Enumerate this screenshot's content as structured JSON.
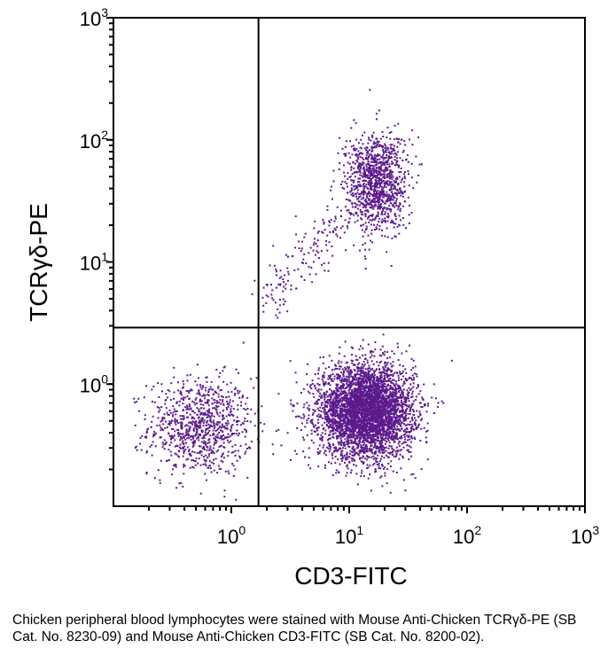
{
  "chart_data": {
    "type": "scatter",
    "title": "",
    "xlabel": "CD3-FITC",
    "ylabel": "TCRγδ-PE",
    "xscale": "log",
    "yscale": "log",
    "xlim": [
      0.1,
      1000
    ],
    "ylim": [
      0.1,
      1000
    ],
    "x_ticks": [
      {
        "value": 1,
        "base": "10",
        "exp": "0"
      },
      {
        "value": 10,
        "base": "10",
        "exp": "1"
      },
      {
        "value": 100,
        "base": "10",
        "exp": "2"
      },
      {
        "value": 1000,
        "base": "10",
        "exp": "3"
      }
    ],
    "y_ticks": [
      {
        "value": 1,
        "base": "10",
        "exp": "0"
      },
      {
        "value": 10,
        "base": "10",
        "exp": "1"
      },
      {
        "value": 100,
        "base": "10",
        "exp": "2"
      },
      {
        "value": 1000,
        "base": "10",
        "exp": "3"
      }
    ],
    "quadrant_gates": {
      "x": 1.7,
      "y": 2.9
    },
    "point_color": "#5c1a8c",
    "populations": [
      {
        "name": "CD3- TCRγδ- (lower-left)",
        "center": [
          0.55,
          0.45
        ],
        "spread_log10": [
          0.22,
          0.2
        ],
        "count": 900
      },
      {
        "name": "CD3+ TCRγδ- (lower-right)",
        "center": [
          14,
          0.6
        ],
        "spread_log10": [
          0.2,
          0.19
        ],
        "count": 4200
      },
      {
        "name": "CD3+ TCRγδ+ (upper-right)",
        "center": [
          17,
          45
        ],
        "spread_log10": [
          0.13,
          0.2
        ],
        "count": 1100
      },
      {
        "name": "transitional diagonal",
        "from": [
          2,
          5
        ],
        "to": [
          10,
          25
        ],
        "count": 160
      }
    ]
  },
  "caption": "Chicken peripheral blood lymphocytes were stained with Mouse Anti-Chicken TCRγδ-PE (SB Cat. No. 8230-09) and Mouse Anti-Chicken CD3-FITC (SB Cat. No. 8200-02)."
}
